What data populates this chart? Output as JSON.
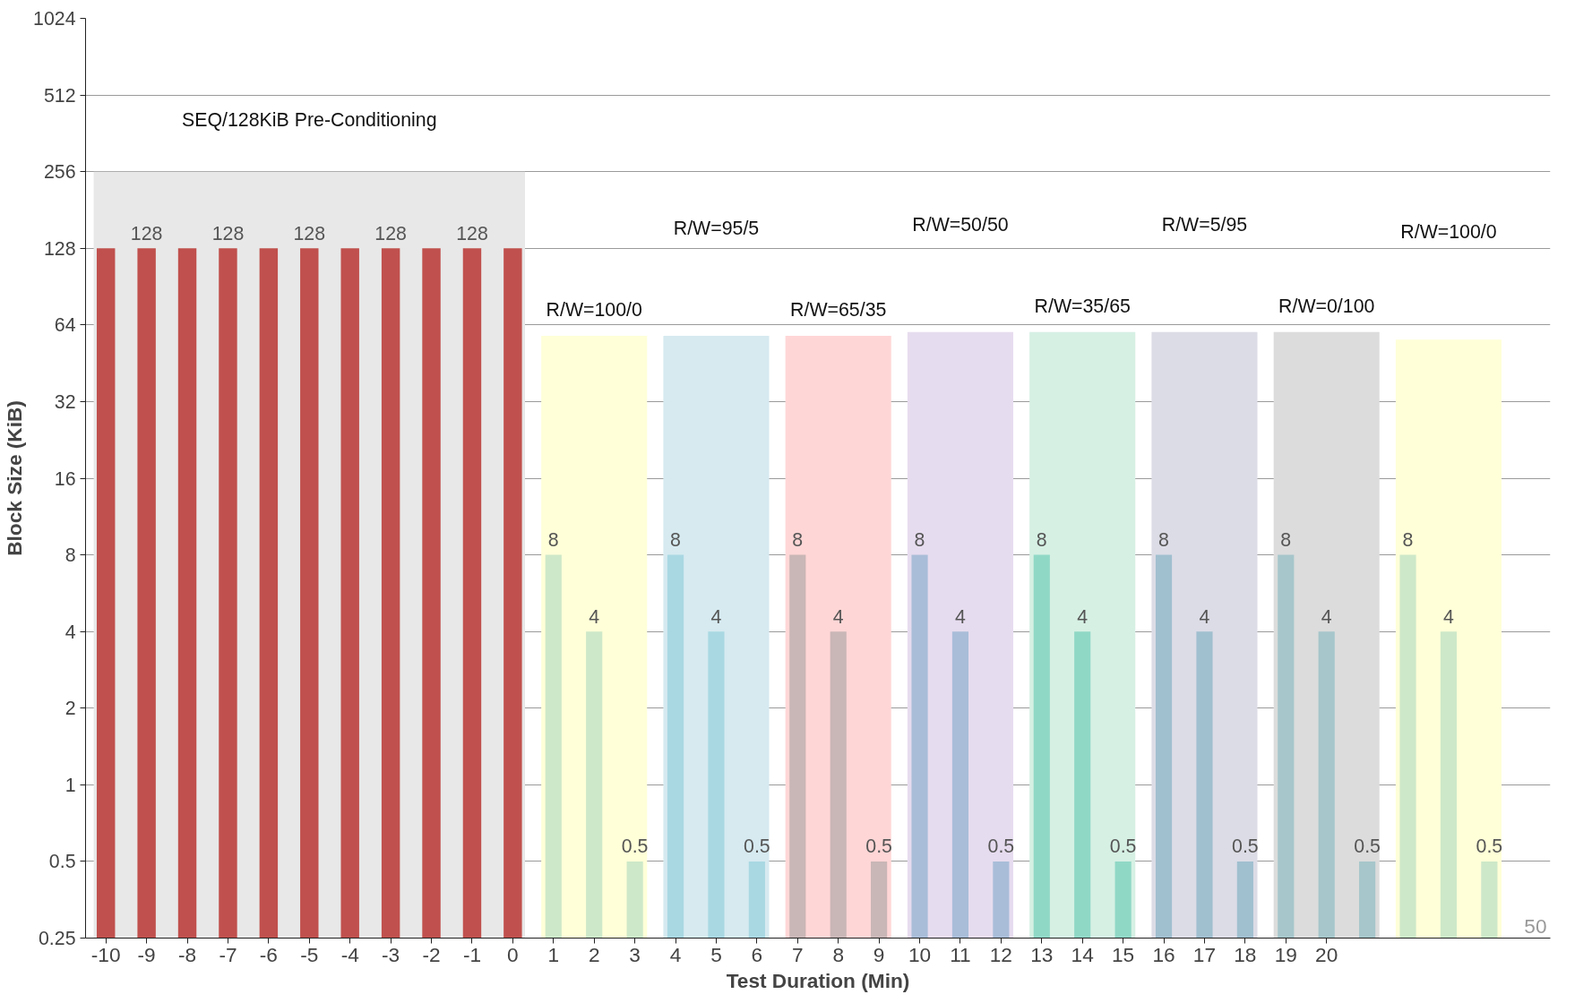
{
  "chart_data": {
    "type": "bar",
    "xlabel": "Test Duration (Min)",
    "ylabel": "Block Size (KiB)",
    "series": [
      {
        "x": [
          -5,
          2,
          5,
          8,
          11,
          14,
          17,
          20,
          23
        ],
        "values": [
          256,
          58,
          58,
          58,
          60,
          60,
          60,
          60,
          56
        ],
        "colors": [
          "#e8e8e8",
          "#ffffd8",
          "#d6eaf0",
          "#ffd6d6",
          "#e6dcef",
          "#d6f0e4",
          "#dcdce6",
          "#dcdcdc",
          "#ffffd8"
        ]
      },
      {
        "x": [
          -10,
          -9,
          -8,
          -7,
          -6,
          -5,
          -4,
          -3,
          -2,
          -1,
          0,
          1,
          2,
          3,
          4,
          5,
          6,
          7,
          8,
          9,
          10,
          11,
          12,
          13,
          14,
          15,
          16,
          17,
          18,
          19,
          20,
          21,
          22,
          23,
          24
        ],
        "values": [
          128,
          128,
          128,
          128,
          128,
          128,
          128,
          128,
          128,
          128,
          128,
          8,
          4,
          0.5,
          8,
          4,
          0.5,
          8,
          4,
          0.5,
          8,
          4,
          0.5,
          8,
          4,
          0.5,
          8,
          4,
          0.5,
          8,
          4,
          0.5,
          8,
          4,
          0.5
        ],
        "colors": [
          "#c0504d",
          "#c0504d",
          "#c0504d",
          "#c0504d",
          "#c0504d",
          "#c0504d",
          "#c0504d",
          "#c0504d",
          "#c0504d",
          "#c0504d",
          "#c0504d",
          "#cde8c8",
          "#cde8c8",
          "#cde8c8",
          "#a9d8e2",
          "#a9d8e2",
          "#a9d8e2",
          "#c9b6b6",
          "#c9b6b6",
          "#c9b6b6",
          "#a9bdd8",
          "#a9bdd8",
          "#a9bdd8",
          "#90d8c6",
          "#90d8c6",
          "#90d8c6",
          "#a0bfcf",
          "#a0bfcf",
          "#a0bfcf",
          "#a6c6cb",
          "#a6c6cb",
          "#a6c6cb",
          "#cde8c8",
          "#cde8c8",
          "#cde8c8"
        ],
        "value_labels": [
          null,
          "128",
          null,
          "128",
          null,
          "128",
          null,
          "128",
          null,
          "128",
          null,
          "8",
          "4",
          "0.5",
          "8",
          "4",
          "0.5",
          "8",
          "4",
          "0.5",
          "8",
          "4",
          "0.5",
          "8",
          "4",
          "0.5",
          "8",
          "4",
          "0.5",
          "8",
          "4",
          "0.5",
          "8",
          "4",
          "0.5"
        ]
      }
    ],
    "annotations": [
      "SEQ/128KiB Pre-Conditioning",
      "R/W=100/0",
      "R/W=95/5",
      "R/W=65/35",
      "R/W=50/50",
      "R/W=35/65",
      "R/W=5/95",
      "R/W=0/100",
      "R/W=100/0",
      "50"
    ],
    "log": true,
    "ylim": [
      0.25,
      1024
    ],
    "yticks": [
      0.25,
      0.5,
      1,
      2,
      4,
      8,
      16,
      32,
      64,
      128,
      256,
      512,
      1024
    ],
    "xlim": [
      -10.5,
      25.5
    ],
    "xticks": [
      -10,
      -9,
      -8,
      -7,
      -6,
      -5,
      -4,
      -3,
      -2,
      -1,
      0,
      1,
      2,
      3,
      4,
      5,
      6,
      7,
      8,
      9,
      10,
      11,
      12,
      13,
      14,
      15,
      16,
      17,
      18,
      19,
      20
    ],
    "grid": "y"
  }
}
